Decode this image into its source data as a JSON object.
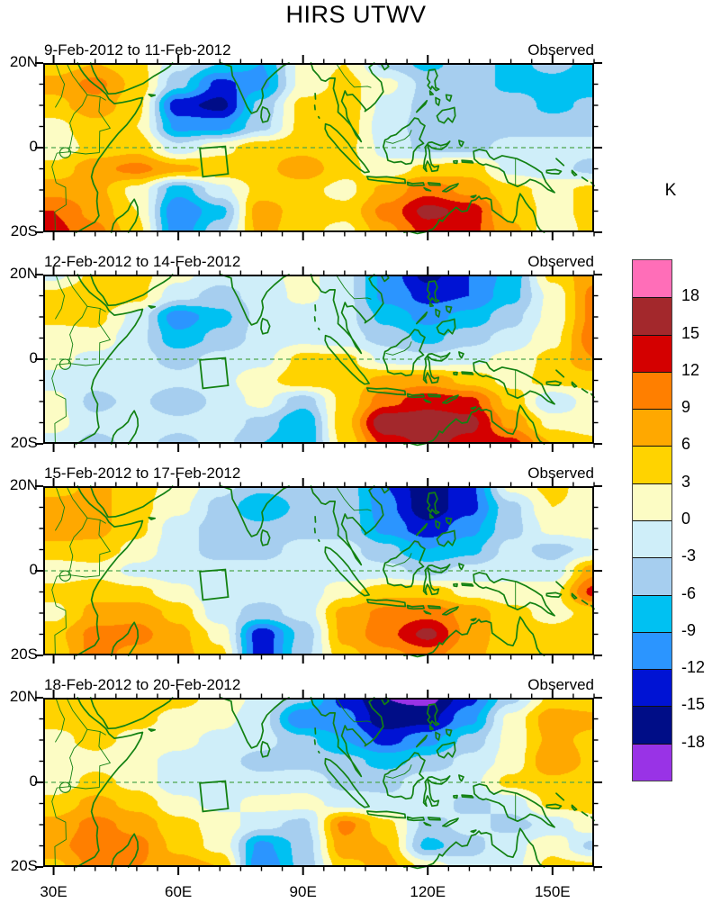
{
  "title": "HIRS UTWV",
  "colorbar": {
    "unit": "K",
    "tick_labels": [
      "18",
      "15",
      "12",
      "9",
      "6",
      "3",
      "0",
      "-3",
      "-6",
      "-9",
      "-12",
      "-15",
      "-18"
    ],
    "levels": [
      -18,
      -15,
      -12,
      -9,
      -6,
      -3,
      0,
      3,
      6,
      9,
      12,
      15,
      18
    ],
    "colors_low_to_high": [
      "#9933E6",
      "#000D87",
      "#0013D4",
      "#2B95FF",
      "#00C1F2",
      "#A6CEEF",
      "#CFEEF9",
      "#FCFCC4",
      "#FFD300",
      "#FFA800",
      "#FF7F00",
      "#D40000",
      "#A3282C",
      "#FF6EB8"
    ]
  },
  "axes": {
    "lat_tick_labels": [
      "20N",
      "0",
      "20S"
    ],
    "lat_tick_values": [
      20,
      0,
      -20
    ],
    "lon_tick_labels": [
      "30E",
      "60E",
      "90E",
      "120E",
      "150E"
    ],
    "lon_tick_values": [
      30,
      60,
      90,
      120,
      150
    ],
    "minor_tick_step_deg": 5,
    "lon_range_deg_e": [
      27.5,
      160
    ],
    "lat_range_deg_n": [
      -20,
      20
    ]
  },
  "study_box": {
    "lon_deg_e": [
      65.2,
      72.0
    ],
    "lat_deg_n": [
      -6.9,
      0.3
    ]
  },
  "map_style": {
    "coastline_color": "#128112",
    "equator_dash_color": "#4DA64D"
  },
  "chart_data": {
    "type": "heatmap",
    "unit": "K",
    "grid_lon_deg_e": [
      30,
      40,
      50,
      60,
      70,
      80,
      90,
      100,
      110,
      120,
      130,
      140,
      150,
      160
    ],
    "grid_lat_deg_n": [
      20,
      15,
      10,
      5,
      0,
      -5,
      -10,
      -15,
      -20
    ],
    "panels": [
      {
        "date_range": "9-Feb-2012 to 11-Feb-2012",
        "source_label": "Observed",
        "values": [
          [
            4,
            6,
            4,
            -2,
            -6,
            -9,
            1,
            3,
            -4,
            -7,
            -4,
            -7,
            -5,
            -7
          ],
          [
            7,
            10,
            5,
            -5,
            -13,
            -10,
            1,
            4,
            1,
            -4,
            -4,
            -7,
            -7,
            -8
          ],
          [
            5,
            8,
            4,
            -14,
            -16,
            -5,
            4,
            5,
            -1,
            -4,
            -4,
            -4,
            -7,
            -5
          ],
          [
            2,
            5,
            3,
            -10,
            -10,
            -4,
            4,
            5,
            -2,
            -4,
            -5,
            -4,
            -4,
            -4
          ],
          [
            1,
            4,
            5,
            -2,
            2,
            5,
            5,
            4,
            -1,
            -4,
            -4,
            -2,
            -2,
            -2
          ],
          [
            4,
            8,
            10,
            7,
            5,
            5,
            8,
            4,
            1,
            4,
            5,
            -1,
            -2,
            -4
          ],
          [
            8,
            7,
            2,
            -8,
            -1,
            4,
            4,
            2,
            7,
            11,
            8,
            4,
            2,
            4
          ],
          [
            12,
            8,
            3,
            -12,
            -7,
            8,
            4,
            4,
            10,
            16,
            14,
            5,
            2,
            4
          ],
          [
            13,
            10,
            4,
            -11,
            -4,
            7,
            4,
            2,
            8,
            13,
            13,
            7,
            1,
            4
          ]
        ]
      },
      {
        "date_range": "12-Feb-2012 to 14-Feb-2012",
        "source_label": "Observed",
        "values": [
          [
            -1,
            4,
            4,
            1,
            -2,
            -1,
            1,
            -2,
            -10,
            -16,
            -12,
            -8,
            4,
            8
          ],
          [
            4,
            6,
            4,
            -2,
            -4,
            -2,
            1,
            -2,
            -10,
            -13,
            -12,
            -7,
            1,
            10
          ],
          [
            4,
            4,
            -1,
            -11,
            -7,
            -2,
            -2,
            -2,
            -7,
            -10,
            -8,
            -4,
            1,
            10
          ],
          [
            1,
            2,
            -2,
            -8,
            -5,
            -2,
            -1,
            -2,
            -4,
            -7,
            -4,
            -2,
            2,
            11
          ],
          [
            1,
            -1,
            -2,
            -4,
            -2,
            -1,
            4,
            4,
            -1,
            -2,
            -1,
            1,
            4,
            9
          ],
          [
            -1,
            -2,
            -1,
            -2,
            -1,
            2,
            5,
            4,
            7,
            8,
            5,
            2,
            4,
            4
          ],
          [
            1,
            -4,
            -2,
            -6,
            -2,
            1,
            -5,
            4,
            11,
            14,
            13,
            5,
            -3,
            2
          ],
          [
            1,
            -2,
            -1,
            -2,
            -1,
            -4,
            -9,
            5,
            18,
            17,
            16,
            8,
            2,
            1
          ],
          [
            -1,
            -4,
            -2,
            -4,
            -2,
            -6,
            -9,
            4,
            13,
            16,
            14,
            13,
            6,
            4
          ]
        ]
      },
      {
        "date_range": "15-Feb-2012 to 17-Feb-2012",
        "source_label": "Observed",
        "values": [
          [
            4,
            7,
            4,
            2,
            -2,
            -5,
            -4,
            -4,
            -12,
            -17,
            -13,
            1,
            4,
            1
          ],
          [
            8,
            7,
            4,
            1,
            -4,
            -9,
            -5,
            -4,
            -11,
            -17,
            -13,
            -4,
            3,
            2
          ],
          [
            8,
            7,
            4,
            -2,
            -4,
            -5,
            -4,
            -4,
            -10,
            -14,
            -10,
            -4,
            1,
            2
          ],
          [
            5,
            5,
            2,
            -2,
            -4,
            -4,
            -2,
            -2,
            -5,
            -9,
            -7,
            -2,
            -4,
            -2
          ],
          [
            1,
            2,
            -1,
            -2,
            -2,
            -2,
            -1,
            -2,
            -2,
            -4,
            -2,
            -1,
            -2,
            8
          ],
          [
            4,
            5,
            4,
            1,
            -2,
            -2,
            -2,
            2,
            5,
            5,
            2,
            1,
            2,
            13
          ],
          [
            2,
            7,
            8,
            5,
            -2,
            -4,
            -2,
            7,
            10,
            11,
            8,
            4,
            2,
            4
          ],
          [
            5,
            10,
            10,
            7,
            2,
            -14,
            -5,
            7,
            11,
            16,
            8,
            4,
            4,
            5
          ],
          [
            4,
            10,
            8,
            7,
            4,
            -14,
            -4,
            5,
            8,
            10,
            7,
            4,
            4,
            5
          ]
        ]
      },
      {
        "date_range": "18-Feb-2012 to 20-Feb-2012",
        "source_label": "Observed",
        "values": [
          [
            4,
            5,
            5,
            4,
            2,
            -1,
            -5,
            -13,
            -18,
            -19,
            -13,
            -4,
            4,
            3
          ],
          [
            4,
            4,
            4,
            2,
            1,
            -2,
            -12,
            -11,
            -17,
            -16,
            -10,
            1,
            8,
            7
          ],
          [
            2,
            4,
            2,
            1,
            -1,
            -2,
            -5,
            -9,
            -13,
            -10,
            -5,
            1,
            7,
            5
          ],
          [
            1,
            2,
            1,
            -1,
            -2,
            -4,
            -4,
            -5,
            -7,
            -5,
            -2,
            1,
            9,
            5
          ],
          [
            1,
            4,
            2,
            -2,
            -1,
            -2,
            -1,
            -4,
            -4,
            -1,
            -1,
            4,
            5,
            4
          ],
          [
            4,
            7,
            5,
            1,
            -1,
            1,
            1,
            -1,
            -2,
            -1,
            -4,
            -2,
            4,
            4
          ],
          [
            7,
            10,
            8,
            4,
            2,
            -2,
            -4,
            10,
            4,
            -4,
            -2,
            -4,
            -2,
            2
          ],
          [
            8,
            11,
            10,
            5,
            2,
            -10,
            -5,
            8,
            6,
            -7,
            -4,
            -1,
            2,
            -4
          ],
          [
            5,
            10,
            9,
            8,
            6,
            -12,
            -5,
            5,
            7,
            2,
            -2,
            -1,
            4,
            4
          ]
        ]
      }
    ]
  }
}
